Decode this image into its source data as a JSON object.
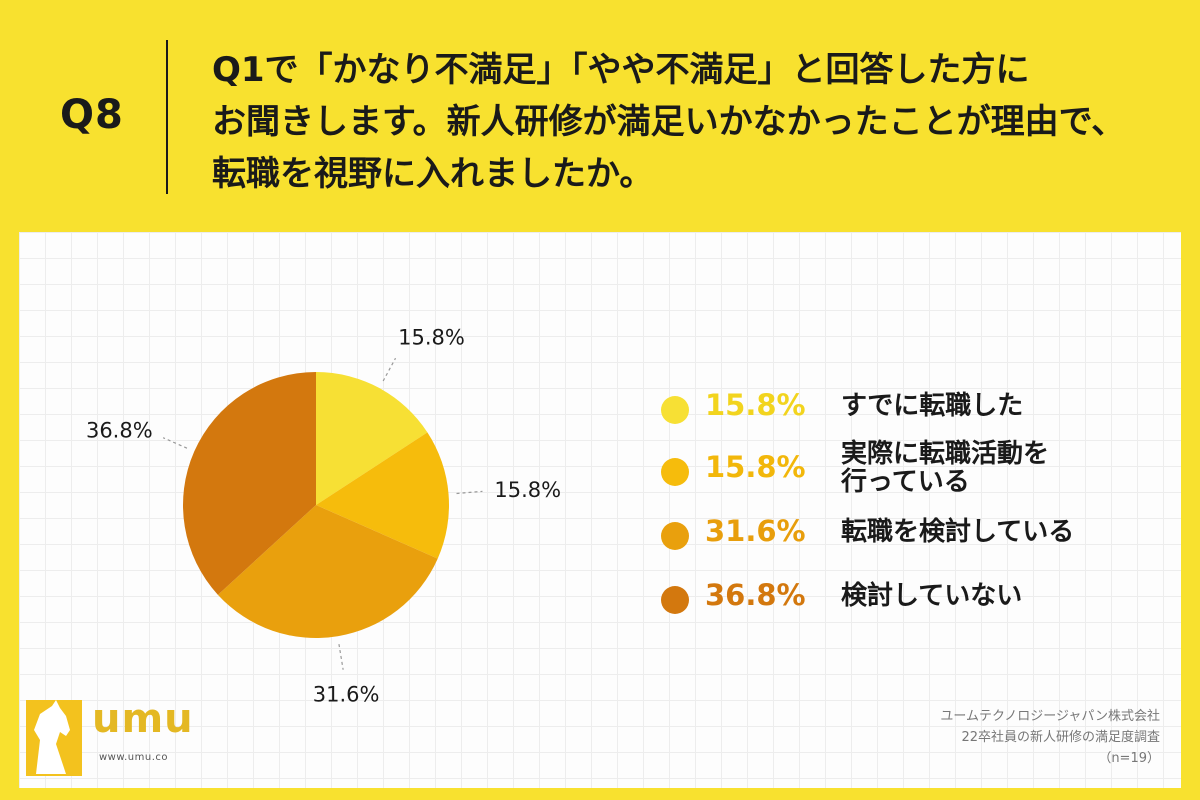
{
  "header": {
    "question_number": "Q8",
    "question_lines": [
      "Q1で「かなり不満足」「やや不満足」と回答した方に",
      "お聞きします。新人研修が満足いかなかったことが理由で、",
      "転職を視野に入れましたか。"
    ]
  },
  "chart_data": {
    "type": "pie",
    "title": "",
    "start_angle_deg": 0,
    "direction": "clockwise",
    "slices": [
      {
        "label": "すでに転職した",
        "value": 15.8,
        "display": "15.8%",
        "color": "#F7E034"
      },
      {
        "label": "実際に転職活動を行っている",
        "value": 15.8,
        "display": "15.8%",
        "color": "#F6BC0C"
      },
      {
        "label": "転職を検討している",
        "value": 31.6,
        "display": "31.6%",
        "color": "#E9A00D"
      },
      {
        "label": "検討していない",
        "value": 36.8,
        "display": "36.8%",
        "color": "#D3780E"
      }
    ]
  },
  "legend": {
    "items": [
      {
        "pct": "15.8%",
        "label_lines": [
          "すでに転職した"
        ],
        "color": "#F7E034",
        "text_color": "#F2D41E"
      },
      {
        "pct": "15.8%",
        "label_lines": [
          "実際に転職活動を",
          "行っている"
        ],
        "color": "#F6BC0C",
        "text_color": "#F2B70A"
      },
      {
        "pct": "31.6%",
        "label_lines": [
          "転職を検討している"
        ],
        "color": "#E9A00D",
        "text_color": "#E89E0C"
      },
      {
        "pct": "36.8%",
        "label_lines": [
          "検討していない"
        ],
        "color": "#D3780E",
        "text_color": "#D3780E"
      }
    ]
  },
  "logo": {
    "text": "umu",
    "url": "www.umu.co",
    "color": "#E4B823"
  },
  "source": {
    "lines": [
      "ユームテクノロジージャパン株式会社",
      "22卒社員の新人研修の満足度調査",
      "（n=19）"
    ]
  }
}
